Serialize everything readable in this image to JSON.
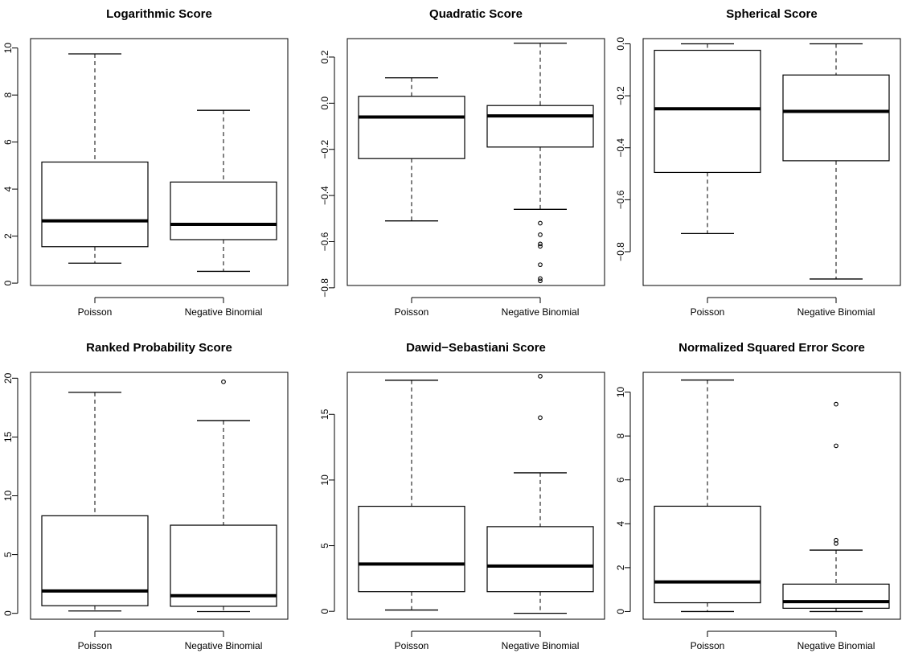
{
  "chart_data": [
    {
      "type": "boxplot",
      "title": "Logarithmic Score",
      "categories": [
        "Poisson",
        "Negative Binomial"
      ],
      "ylim": [
        -0.1,
        10.4
      ],
      "yticks": [
        0,
        2,
        4,
        6,
        8,
        10
      ],
      "boxes": [
        {
          "whisker_low": 0.85,
          "q1": 1.55,
          "median": 2.65,
          "q3": 5.15,
          "whisker_high": 9.75,
          "outliers": []
        },
        {
          "whisker_low": 0.5,
          "q1": 1.85,
          "median": 2.5,
          "q3": 4.3,
          "whisker_high": 7.35,
          "outliers": []
        }
      ]
    },
    {
      "type": "boxplot",
      "title": "Quadratic Score",
      "categories": [
        "Poisson",
        "Negative Binomial"
      ],
      "ylim": [
        -0.79,
        0.28
      ],
      "yticks": [
        -0.8,
        -0.6,
        -0.4,
        -0.2,
        0.0,
        0.2
      ],
      "ytick_labels": [
        "−0.8",
        "−0.6",
        "−0.4",
        "−0.2",
        "0.0",
        "0.2"
      ],
      "boxes": [
        {
          "whisker_low": -0.51,
          "q1": -0.24,
          "median": -0.06,
          "q3": 0.03,
          "whisker_high": 0.11,
          "outliers": []
        },
        {
          "whisker_low": -0.46,
          "q1": -0.19,
          "median": -0.055,
          "q3": -0.01,
          "whisker_high": 0.26,
          "outliers": [
            -0.52,
            -0.57,
            -0.61,
            -0.62,
            -0.7,
            -0.76,
            -0.77
          ]
        }
      ]
    },
    {
      "type": "boxplot",
      "title": "Spherical Score",
      "categories": [
        "Poisson",
        "Negative Binomial"
      ],
      "ylim": [
        -0.93,
        0.02
      ],
      "yticks": [
        -0.8,
        -0.6,
        -0.4,
        -0.2,
        0.0
      ],
      "ytick_labels": [
        "−0.8",
        "−0.6",
        "−0.4",
        "−0.2",
        "0.0"
      ],
      "boxes": [
        {
          "whisker_low": -0.73,
          "q1": -0.495,
          "median": -0.25,
          "q3": -0.025,
          "whisker_high": 0.0,
          "outliers": []
        },
        {
          "whisker_low": -0.905,
          "q1": -0.45,
          "median": -0.26,
          "q3": -0.12,
          "whisker_high": 0.0,
          "outliers": []
        }
      ]
    },
    {
      "type": "boxplot",
      "title": "Ranked Probability Score",
      "categories": [
        "Poisson",
        "Negative Binomial"
      ],
      "ylim": [
        -0.5,
        20.5
      ],
      "yticks": [
        0,
        5,
        10,
        15,
        20
      ],
      "boxes": [
        {
          "whisker_low": 0.2,
          "q1": 0.65,
          "median": 1.9,
          "q3": 8.3,
          "whisker_high": 18.8,
          "outliers": []
        },
        {
          "whisker_low": 0.15,
          "q1": 0.6,
          "median": 1.5,
          "q3": 7.5,
          "whisker_high": 16.4,
          "outliers": [
            19.7
          ]
        }
      ]
    },
    {
      "type": "boxplot",
      "title": "Dawid−Sebastiani Score",
      "categories": [
        "Poisson",
        "Negative Binomial"
      ],
      "ylim": [
        -0.6,
        18.2
      ],
      "yticks": [
        0,
        5,
        10,
        15
      ],
      "boxes": [
        {
          "whisker_low": 0.1,
          "q1": 1.5,
          "median": 3.6,
          "q3": 8.0,
          "whisker_high": 17.6,
          "outliers": []
        },
        {
          "whisker_low": -0.15,
          "q1": 1.5,
          "median": 3.45,
          "q3": 6.45,
          "whisker_high": 10.55,
          "outliers": [
            14.75,
            17.9
          ]
        }
      ]
    },
    {
      "type": "boxplot",
      "title": "Normalized Squared Error Score",
      "categories": [
        "Poisson",
        "Negative Binomial"
      ],
      "ylim": [
        -0.35,
        10.9
      ],
      "yticks": [
        0,
        2,
        4,
        6,
        8,
        10
      ],
      "boxes": [
        {
          "whisker_low": 0.0,
          "q1": 0.4,
          "median": 1.35,
          "q3": 4.8,
          "whisker_high": 10.55,
          "outliers": []
        },
        {
          "whisker_low": 0.0,
          "q1": 0.15,
          "median": 0.45,
          "q3": 1.25,
          "whisker_high": 2.8,
          "outliers": [
            3.1,
            3.25,
            7.55,
            9.45
          ]
        }
      ]
    }
  ]
}
